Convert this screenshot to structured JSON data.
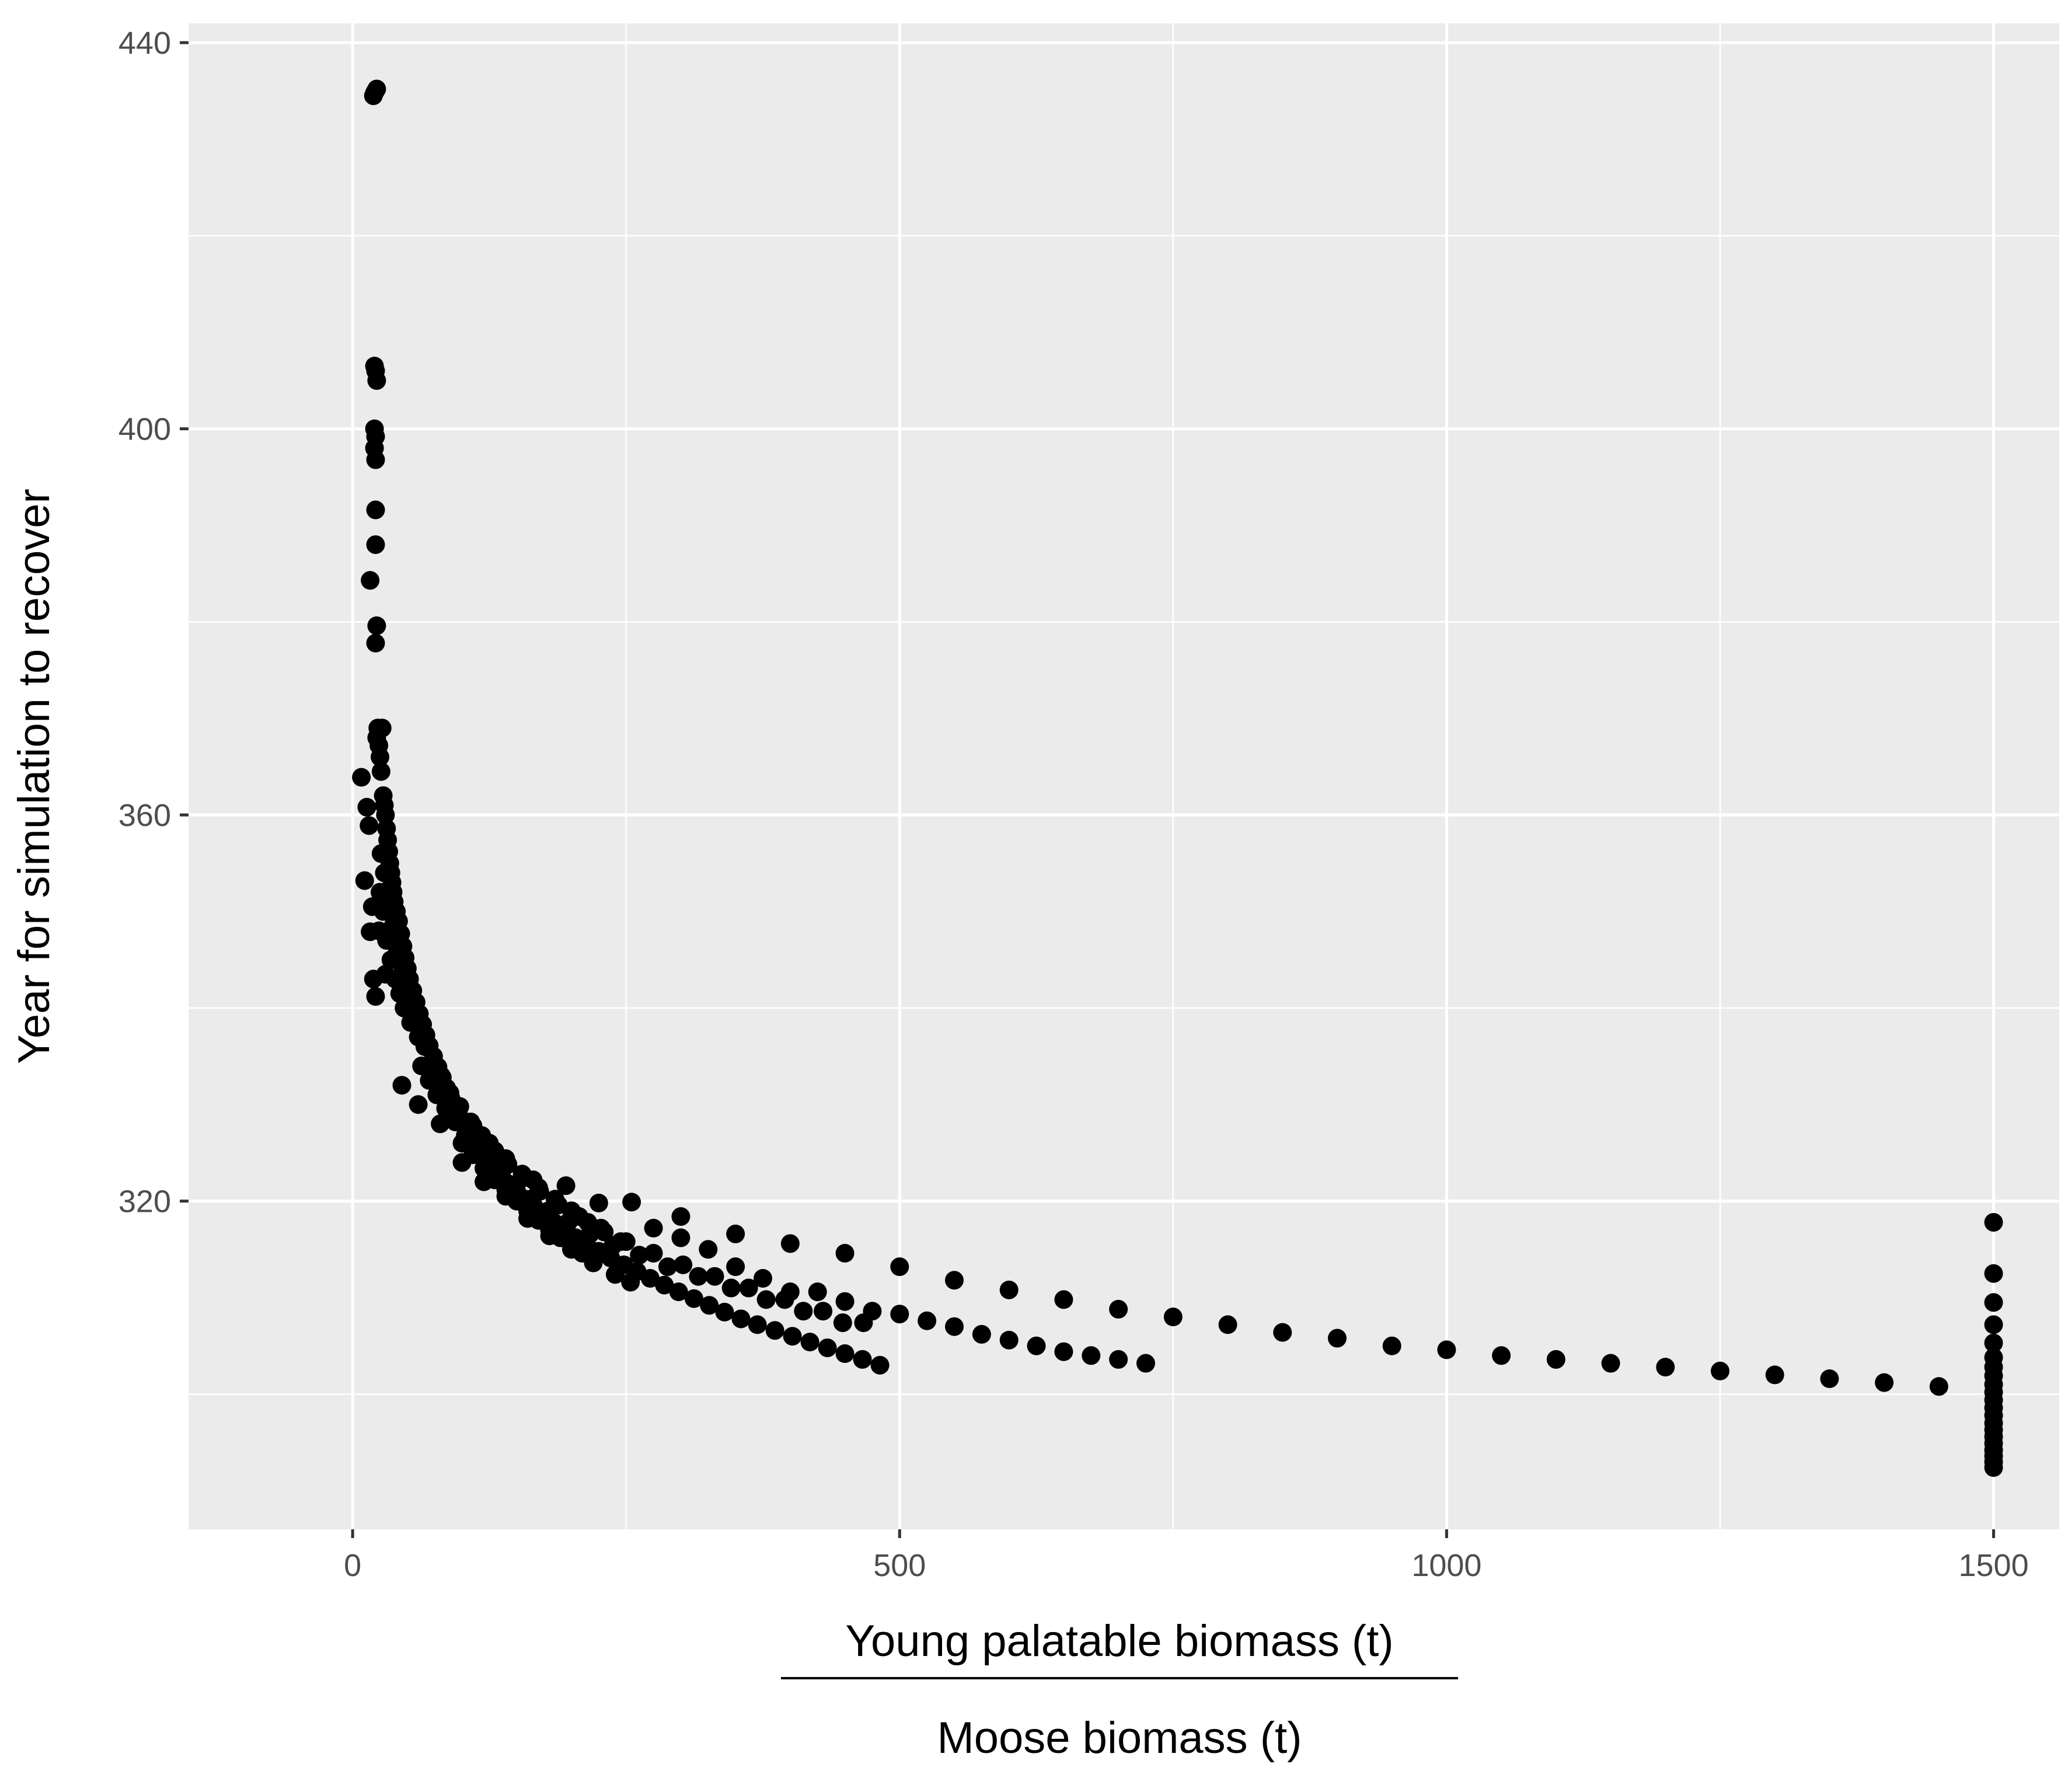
{
  "colors": {
    "panel_background": "#ebebeb",
    "grid_major": "#ffffff",
    "grid_minor": "#ffffff",
    "point": "#000000",
    "tick_text": "#4d4d4d",
    "axis_title_text": "#000000"
  },
  "chart_data": {
    "type": "scatter",
    "title": "",
    "ylabel": "Year for simulation to recover",
    "xlabel_numerator": "Young palatable biomass (t)",
    "xlabel_denominator": "Moose biomass (t)",
    "xlim": [
      -150,
      1560
    ],
    "ylim": [
      286,
      442
    ],
    "x_ticks": [
      0,
      500,
      1000,
      1500
    ],
    "y_ticks": [
      320,
      360,
      400,
      440
    ],
    "x_tick_labels": [
      "0",
      "500",
      "1000",
      "1500"
    ],
    "y_tick_labels": [
      "320",
      "360",
      "400",
      "440"
    ],
    "grid": true,
    "legend": "none",
    "series": [
      {
        "points": [
          [
            19,
            434.5
          ],
          [
            20,
            434.8
          ],
          [
            21,
            435.0
          ],
          [
            22,
            435.2
          ],
          [
            20,
            406.5
          ],
          [
            21,
            406.0
          ],
          [
            22,
            405.0
          ],
          [
            20,
            400.0
          ],
          [
            21,
            399.2
          ],
          [
            20,
            398.0
          ],
          [
            21,
            396.8
          ],
          [
            21,
            391.6
          ],
          [
            21,
            388.0
          ],
          [
            16,
            384.3
          ],
          [
            22,
            379.6
          ],
          [
            21,
            377.8
          ],
          [
            8,
            363.9
          ],
          [
            11,
            353.2
          ],
          [
            13,
            360.8
          ],
          [
            15,
            358.9
          ],
          [
            16,
            347.9
          ],
          [
            18,
            350.5
          ],
          [
            19,
            343.0
          ],
          [
            21,
            341.2
          ],
          [
            22,
            368.0
          ],
          [
            23,
            369.0
          ],
          [
            24,
            367.2
          ],
          [
            25,
            366.0
          ],
          [
            26,
            364.5
          ],
          [
            27,
            369.0
          ],
          [
            28,
            362.0
          ],
          [
            29,
            361.0
          ],
          [
            30,
            360.0
          ],
          [
            31,
            358.6
          ],
          [
            32,
            357.4
          ],
          [
            33,
            356.2
          ],
          [
            34,
            355.0
          ],
          [
            35,
            354.0
          ],
          [
            36,
            353.0
          ],
          [
            37,
            352.0
          ],
          [
            38,
            351.0
          ],
          [
            40,
            350.0
          ],
          [
            42,
            349.0
          ],
          [
            44,
            347.7
          ],
          [
            46,
            346.4
          ],
          [
            48,
            345.2
          ],
          [
            50,
            344.1
          ],
          [
            52,
            343.0
          ],
          [
            55,
            341.8
          ],
          [
            58,
            340.6
          ],
          [
            61,
            339.4
          ],
          [
            64,
            338.3
          ],
          [
            67,
            337.2
          ],
          [
            70,
            336.1
          ],
          [
            74,
            335.0
          ],
          [
            78,
            333.9
          ],
          [
            82,
            332.8
          ],
          [
            86,
            331.7
          ],
          [
            90,
            330.6
          ],
          [
            95,
            329.5
          ],
          [
            100,
            328.4
          ],
          [
            105,
            327.4
          ],
          [
            110,
            326.4
          ],
          [
            116,
            325.4
          ],
          [
            122,
            324.5
          ],
          [
            128,
            323.6
          ],
          [
            135,
            322.7
          ],
          [
            142,
            321.8
          ],
          [
            150,
            321.0
          ],
          [
            158,
            320.2
          ],
          [
            166,
            319.4
          ],
          [
            175,
            318.6
          ],
          [
            184,
            317.8
          ],
          [
            194,
            317.0
          ],
          [
            204,
            316.2
          ],
          [
            214,
            315.5
          ],
          [
            225,
            314.8
          ],
          [
            236,
            314.1
          ],
          [
            248,
            313.4
          ],
          [
            260,
            312.7
          ],
          [
            272,
            312.0
          ],
          [
            285,
            311.3
          ],
          [
            298,
            310.6
          ],
          [
            312,
            309.9
          ],
          [
            326,
            309.2
          ],
          [
            340,
            308.5
          ],
          [
            355,
            307.8
          ],
          [
            370,
            307.2
          ],
          [
            386,
            306.6
          ],
          [
            402,
            306.0
          ],
          [
            418,
            305.4
          ],
          [
            434,
            304.8
          ],
          [
            450,
            304.2
          ],
          [
            466,
            303.6
          ],
          [
            482,
            303.0
          ],
          [
            24,
            348.0
          ],
          [
            25,
            352.0
          ],
          [
            26,
            356.0
          ],
          [
            28,
            350.0
          ],
          [
            29,
            354.0
          ],
          [
            31,
            347.0
          ],
          [
            33,
            351.0
          ],
          [
            35,
            345.0
          ],
          [
            37,
            348.5
          ],
          [
            39,
            343.0
          ],
          [
            41,
            346.0
          ],
          [
            43,
            341.5
          ],
          [
            45,
            344.5
          ],
          [
            47,
            340.0
          ],
          [
            50,
            342.5
          ],
          [
            53,
            338.5
          ],
          [
            56,
            340.5
          ],
          [
            60,
            337.0
          ],
          [
            63,
            334.0
          ],
          [
            66,
            336.0
          ],
          [
            70,
            332.5
          ],
          [
            73,
            334.5
          ],
          [
            77,
            331.0
          ],
          [
            81,
            333.0
          ],
          [
            85,
            329.6
          ],
          [
            89,
            331.2
          ],
          [
            94,
            328.2
          ],
          [
            98,
            329.8
          ],
          [
            103,
            326.8
          ],
          [
            108,
            328.2
          ],
          [
            113,
            325.4
          ],
          [
            118,
            326.8
          ],
          [
            124,
            324.0
          ],
          [
            130,
            325.2
          ],
          [
            136,
            322.8
          ],
          [
            142,
            323.8
          ],
          [
            149,
            321.4
          ],
          [
            156,
            322.4
          ],
          [
            163,
            320.2
          ],
          [
            171,
            321.0
          ],
          [
            179,
            319.0
          ],
          [
            188,
            319.6
          ],
          [
            197,
            317.8
          ],
          [
            207,
            318.4
          ],
          [
            217,
            316.6
          ],
          [
            227,
            317.2
          ],
          [
            238,
            315.4
          ],
          [
            250,
            315.8
          ],
          [
            262,
            314.4
          ],
          [
            275,
            314.6
          ],
          [
            288,
            313.2
          ],
          [
            302,
            313.4
          ],
          [
            316,
            312.2
          ],
          [
            331,
            312.2
          ],
          [
            346,
            311.0
          ],
          [
            362,
            311.0
          ],
          [
            378,
            309.8
          ],
          [
            395,
            309.8
          ],
          [
            412,
            308.6
          ],
          [
            430,
            308.6
          ],
          [
            448,
            307.4
          ],
          [
            467,
            307.4
          ],
          [
            30,
            343.5
          ],
          [
            45,
            332.0
          ],
          [
            60,
            330.0
          ],
          [
            80,
            328.0
          ],
          [
            100,
            324.0
          ],
          [
            120,
            322.0
          ],
          [
            140,
            320.5
          ],
          [
            160,
            318.2
          ],
          [
            180,
            316.4
          ],
          [
            200,
            315.0
          ],
          [
            220,
            313.6
          ],
          [
            240,
            312.4
          ],
          [
            254,
            311.6
          ],
          [
            100,
            326.0
          ],
          [
            110,
            324.8
          ],
          [
            120,
            323.4
          ],
          [
            130,
            322.2
          ],
          [
            140,
            321.2
          ],
          [
            150,
            320.0
          ],
          [
            160,
            319.0
          ],
          [
            170,
            318.0
          ],
          [
            180,
            317.0
          ],
          [
            190,
            316.2
          ],
          [
            200,
            315.4
          ],
          [
            210,
            314.6
          ],
          [
            110,
            327.8
          ],
          [
            125,
            326.0
          ],
          [
            140,
            324.4
          ],
          [
            155,
            322.8
          ],
          [
            170,
            321.4
          ],
          [
            185,
            320.2
          ],
          [
            200,
            319.0
          ],
          [
            215,
            317.8
          ],
          [
            230,
            316.8
          ],
          [
            245,
            315.8
          ],
          [
            135,
            324.4
          ],
          [
            165,
            322.2
          ],
          [
            195,
            321.6
          ],
          [
            225,
            319.8
          ],
          [
            255,
            319.9
          ],
          [
            275,
            317.2
          ],
          [
            300,
            318.4
          ],
          [
            300,
            316.2
          ],
          [
            325,
            315.0
          ],
          [
            350,
            316.6
          ],
          [
            350,
            313.2
          ],
          [
            375,
            312.0
          ],
          [
            400,
            315.6
          ],
          [
            400,
            310.6
          ],
          [
            425,
            310.6
          ],
          [
            450,
            314.6
          ],
          [
            450,
            309.6
          ],
          [
            475,
            308.6
          ],
          [
            500,
            313.2
          ],
          [
            500,
            308.3
          ],
          [
            525,
            307.6
          ],
          [
            550,
            311.8
          ],
          [
            550,
            307.0
          ],
          [
            575,
            306.2
          ],
          [
            600,
            310.8
          ],
          [
            600,
            305.6
          ],
          [
            625,
            305.0
          ],
          [
            650,
            309.8
          ],
          [
            650,
            304.4
          ],
          [
            675,
            304.0
          ],
          [
            700,
            308.8
          ],
          [
            700,
            303.6
          ],
          [
            725,
            303.2
          ],
          [
            750,
            308.0
          ],
          [
            800,
            307.2
          ],
          [
            850,
            306.4
          ],
          [
            900,
            305.8
          ],
          [
            950,
            305.0
          ],
          [
            1000,
            304.6
          ],
          [
            1050,
            304.0
          ],
          [
            1100,
            303.6
          ],
          [
            1150,
            303.2
          ],
          [
            1200,
            302.8
          ],
          [
            1250,
            302.4
          ],
          [
            1300,
            302.0
          ],
          [
            1350,
            301.6
          ],
          [
            1400,
            301.2
          ],
          [
            1450,
            300.8
          ],
          [
            1500,
            317.8
          ],
          [
            1500,
            312.5
          ],
          [
            1500,
            309.5
          ],
          [
            1500,
            307.2
          ],
          [
            1500,
            305.3
          ],
          [
            1500,
            303.8
          ],
          [
            1500,
            302.8
          ],
          [
            1500,
            301.9
          ],
          [
            1500,
            301.0
          ],
          [
            1500,
            300.2
          ],
          [
            1500,
            299.4
          ],
          [
            1500,
            298.6
          ],
          [
            1500,
            297.8
          ],
          [
            1500,
            297.0
          ],
          [
            1500,
            296.3
          ],
          [
            1500,
            295.6
          ],
          [
            1500,
            294.9
          ],
          [
            1500,
            294.2
          ],
          [
            1500,
            293.6
          ],
          [
            1500,
            293.0
          ],
          [
            1500,
            292.4
          ]
        ]
      }
    ]
  }
}
